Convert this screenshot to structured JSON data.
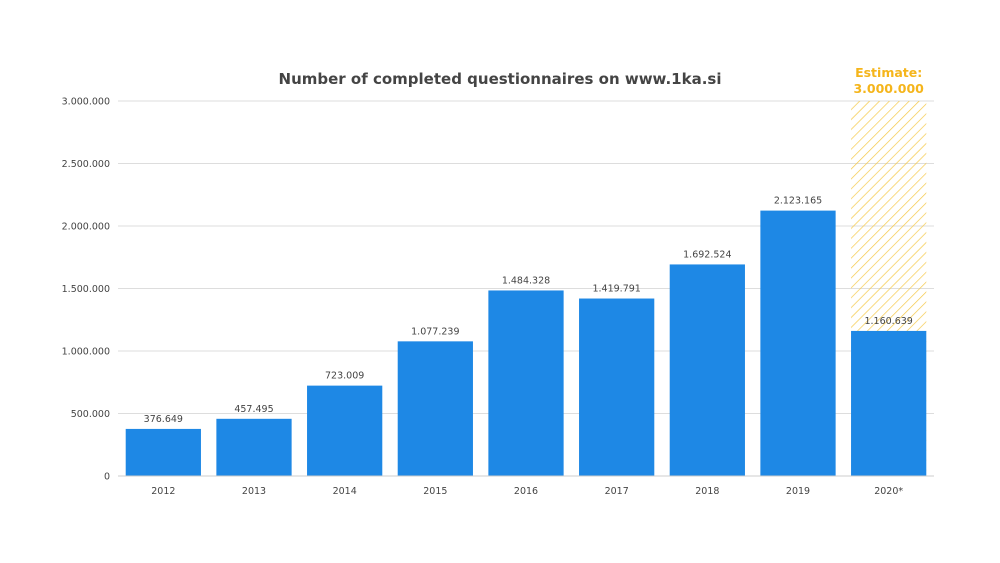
{
  "chart_data": {
    "type": "bar",
    "title": "Number of completed questionnaires on www.1ka.si",
    "categories": [
      "2012",
      "2013",
      "2014",
      "2015",
      "2016",
      "2017",
      "2018",
      "2019",
      "2020*"
    ],
    "values": [
      376649,
      457495,
      723009,
      1077239,
      1484328,
      1419791,
      1692524,
      2123165,
      1160639
    ],
    "value_labels": [
      "376.649",
      "457.495",
      "723.009",
      "1.077.239",
      "1.484.328",
      "1.419.791",
      "1.692.524",
      "2.123.165",
      "1.160.639"
    ],
    "ylim": [
      0,
      3000000
    ],
    "y_ticks": [
      0,
      500000,
      1000000,
      1500000,
      2000000,
      2500000,
      3000000
    ],
    "y_tick_labels": [
      "0",
      "500.000",
      "1.000.000",
      "1.500.000",
      "2.000.000",
      "2.500.000",
      "3.000.000"
    ],
    "grid": true,
    "estimate": {
      "category": "2020*",
      "value": 3000000,
      "label_line1": "Estimate:",
      "label_line2": "3.000.000"
    },
    "colors": {
      "bar": "#1e88e5",
      "estimate": "#f5b51b",
      "grid": "#dddddd",
      "text": "#444444"
    }
  }
}
